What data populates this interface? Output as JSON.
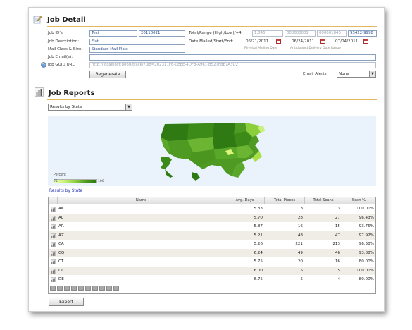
{
  "job_detail": {
    "title": "Job Detail",
    "labels": {
      "job_ids": "Job ID's:",
      "job_description": "Job Description:",
      "mail_class_size": "Mail Class & Size:",
      "job_emails": "Job Email(s):",
      "job_guid_url": "Job GUID URL:",
      "total_range": "Total/Range (High/Low)/+4:",
      "date_mailed": "Date Mailed/Start/End:"
    },
    "values": {
      "job_id_1": "Test",
      "job_id_2": "20110621",
      "job_description": "Flat",
      "mail_class_size": "Standard Mail Flats",
      "job_emails": "",
      "job_guid_url": "http://localhost:8080/track/?uid=202311F6-CEEE-4DF8-A961-B527F8E7A3D2",
      "total": "1,846",
      "range_low": "000000001",
      "range_high": "000001846",
      "plus4": "93422-9998",
      "date_mailed": "06/21/2011",
      "start_date": "06/24/2011",
      "end_date": "07/04/2011",
      "physical_mailing_date_caption": "Physical Mailing Date",
      "anticipated_delivery_caption": "Anticipated Delivery Date Range"
    },
    "regenerate_label": "Regenerate",
    "email_alerts_label": "Email Alerts:",
    "email_alerts_value": "None"
  },
  "job_reports": {
    "title": "Job Reports",
    "report_select_value": "Results by State",
    "map_legend_title": "Percent",
    "map_legend_min": "75",
    "map_legend_max": "100",
    "link_label": "Results by State",
    "columns": [
      "Name",
      "Avg. Days",
      "Total Pieces",
      "Total Scans",
      "Scan %"
    ],
    "rows": [
      {
        "name": "AK",
        "avg_days": "5.33",
        "total_pieces": "3",
        "total_scans": "3",
        "scan_pct": "100.00%"
      },
      {
        "name": "AL",
        "avg_days": "5.70",
        "total_pieces": "28",
        "total_scans": "27",
        "scan_pct": "96.43%"
      },
      {
        "name": "AR",
        "avg_days": "5.87",
        "total_pieces": "16",
        "total_scans": "15",
        "scan_pct": "93.75%"
      },
      {
        "name": "AZ",
        "avg_days": "5.21",
        "total_pieces": "48",
        "total_scans": "47",
        "scan_pct": "97.92%"
      },
      {
        "name": "CA",
        "avg_days": "5.26",
        "total_pieces": "221",
        "total_scans": "213",
        "scan_pct": "96.38%"
      },
      {
        "name": "CO",
        "avg_days": "6.24",
        "total_pieces": "49",
        "total_scans": "46",
        "scan_pct": "93.88%"
      },
      {
        "name": "CT",
        "avg_days": "5.75",
        "total_pieces": "20",
        "total_scans": "16",
        "scan_pct": "80.00%"
      },
      {
        "name": "DC",
        "avg_days": "6.00",
        "total_pieces": "5",
        "total_scans": "5",
        "scan_pct": "100.00%"
      },
      {
        "name": "DE",
        "avg_days": "6.75",
        "total_pieces": "5",
        "total_scans": "4",
        "scan_pct": "80.00%"
      }
    ],
    "export_label": "Export"
  },
  "colors": {
    "accent_rule": "#e2b75e",
    "map_background": "#eaf3fb",
    "map_dark": "#2f7a12",
    "map_light": "#c8f07a",
    "link": "#2230b0"
  }
}
